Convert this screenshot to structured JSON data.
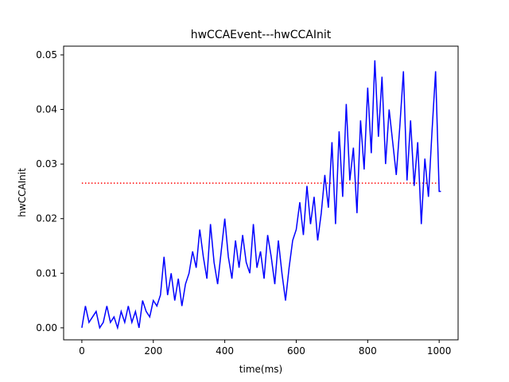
{
  "chart_data": {
    "type": "line",
    "title": "hwCCAEvent---hwCCAInit",
    "xlabel": "time(ms)",
    "ylabel": "hwCCAInit",
    "series": [
      {
        "color": "#0000ff",
        "x": [
          0,
          10,
          20,
          30,
          40,
          50,
          60,
          70,
          80,
          90,
          100,
          110,
          120,
          130,
          140,
          150,
          160,
          170,
          180,
          190,
          200,
          210,
          220,
          230,
          240,
          250,
          260,
          270,
          280,
          290,
          300,
          310,
          320,
          330,
          340,
          350,
          360,
          370,
          380,
          390,
          400,
          410,
          420,
          430,
          440,
          450,
          460,
          470,
          480,
          490,
          500,
          510,
          520,
          530,
          540,
          550,
          560,
          570,
          580,
          590,
          600,
          610,
          620,
          630,
          640,
          650,
          660,
          670,
          680,
          690,
          700,
          710,
          720,
          730,
          740,
          750,
          760,
          770,
          780,
          790,
          800,
          810,
          820,
          830,
          840,
          850,
          860,
          870,
          880,
          890,
          900,
          910,
          920,
          930,
          940,
          950,
          960,
          970,
          980,
          990,
          1000,
          1005
        ],
        "values": [
          0.0,
          0.004,
          0.001,
          0.002,
          0.003,
          0.0,
          0.001,
          0.004,
          0.001,
          0.002,
          0.0,
          0.003,
          0.001,
          0.004,
          0.001,
          0.003,
          0.0,
          0.005,
          0.003,
          0.002,
          0.005,
          0.004,
          0.006,
          0.013,
          0.006,
          0.01,
          0.005,
          0.009,
          0.004,
          0.008,
          0.01,
          0.014,
          0.011,
          0.018,
          0.013,
          0.009,
          0.019,
          0.012,
          0.008,
          0.014,
          0.02,
          0.013,
          0.009,
          0.016,
          0.011,
          0.017,
          0.012,
          0.01,
          0.019,
          0.011,
          0.014,
          0.009,
          0.017,
          0.013,
          0.008,
          0.016,
          0.01,
          0.005,
          0.011,
          0.016,
          0.018,
          0.023,
          0.017,
          0.026,
          0.019,
          0.024,
          0.016,
          0.021,
          0.028,
          0.022,
          0.034,
          0.019,
          0.036,
          0.024,
          0.041,
          0.027,
          0.033,
          0.021,
          0.038,
          0.029,
          0.044,
          0.032,
          0.049,
          0.035,
          0.046,
          0.03,
          0.04,
          0.034,
          0.028,
          0.037,
          0.047,
          0.027,
          0.038,
          0.026,
          0.034,
          0.019,
          0.031,
          0.024,
          0.036,
          0.047,
          0.025,
          0.025
        ]
      }
    ],
    "reference_line": {
      "value": 0.0265,
      "xmin": 0,
      "xmax": 1000,
      "color": "#ff0000",
      "style": "dotted"
    },
    "xlim": [
      -51,
      1053
    ],
    "ylim": [
      -0.0022,
      0.0516
    ],
    "xticks": [
      0,
      200,
      400,
      600,
      800,
      1000
    ],
    "yticks": [
      {
        "value": 0,
        "label": "0.00"
      },
      0.01,
      0.02,
      0.03,
      0.04,
      0.05
    ]
  }
}
